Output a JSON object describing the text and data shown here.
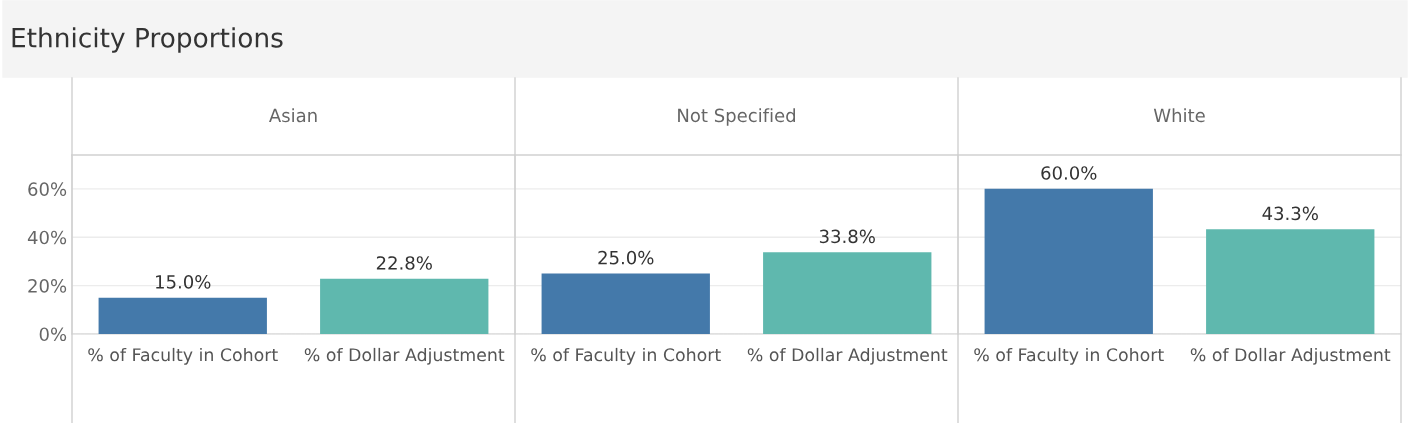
{
  "chart_data": [
    {
      "type": "bar",
      "title": "Asian",
      "annotations": [
        "Ethnicity Proportions"
      ],
      "categories": [
        "% of Faculty in Cohort",
        "% of Dollar Adjustment"
      ],
      "values": [
        15.0,
        22.8
      ],
      "colors": [
        "#4479aa",
        "#5fb8ae"
      ],
      "value_labels": [
        "15.0%",
        "22.8%"
      ],
      "ylim": [
        0,
        74
      ],
      "yticks": [
        {
          "value": 0,
          "label": "0%"
        },
        {
          "value": 20,
          "label": "20%"
        },
        {
          "value": 40,
          "label": "40%"
        },
        {
          "value": 60,
          "label": "60%"
        }
      ],
      "grid": "y",
      "legend": false
    },
    {
      "type": "bar",
      "title": "Not Specified",
      "categories": [
        "% of Faculty in Cohort",
        "% of Dollar Adjustment"
      ],
      "values": [
        25.0,
        33.8
      ],
      "colors": [
        "#4479aa",
        "#5fb8ae"
      ],
      "value_labels": [
        "25.0%",
        "33.8%"
      ],
      "ylim": [
        0,
        74
      ],
      "yticks": [
        {
          "value": 0,
          "label": null
        },
        {
          "value": 20,
          "label": null
        },
        {
          "value": 40,
          "label": null
        },
        {
          "value": 60,
          "label": null
        }
      ],
      "grid": "y",
      "tick_labels": "x",
      "legend": false
    },
    {
      "type": "bar",
      "title": "White",
      "categories": [
        "% of Faculty in Cohort",
        "% of Dollar Adjustment"
      ],
      "values": [
        60.0,
        43.3
      ],
      "colors": [
        "#4479aa",
        "#5fb8ae"
      ],
      "value_labels": [
        "60.0%",
        "43.3%"
      ],
      "ylim": [
        0,
        74
      ],
      "yticks": [
        {
          "value": 0,
          "label": null
        },
        {
          "value": 20,
          "label": null
        },
        {
          "value": 40,
          "label": null
        },
        {
          "value": 60,
          "label": null
        }
      ],
      "grid": "y",
      "tick_labels": "x",
      "legend": false
    }
  ]
}
